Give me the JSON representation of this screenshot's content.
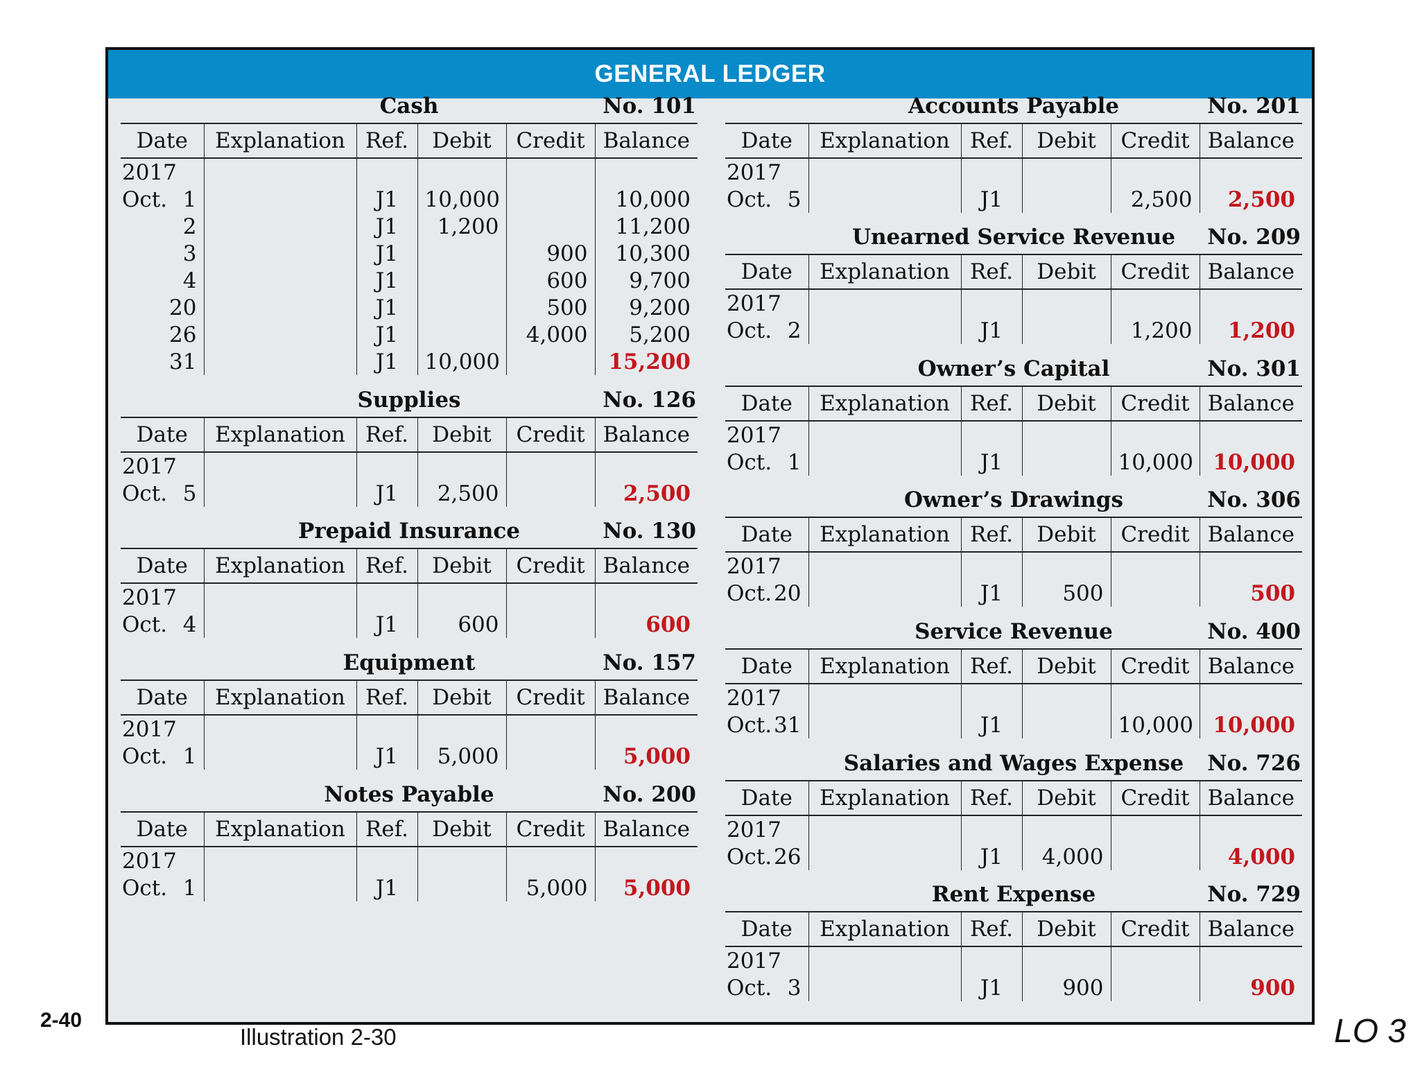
{
  "header": {
    "title": "GENERAL LEDGER"
  },
  "columns": [
    "Date",
    "Explanation",
    "Ref.",
    "Debit",
    "Credit",
    "Balance"
  ],
  "accounts": [
    {
      "side": "left",
      "name": "Cash",
      "number": "No. 101",
      "year": "2017",
      "rows": [
        {
          "month": "Oct.",
          "day": "1",
          "ref": "J1",
          "debit": "10,000",
          "credit": "",
          "balance": "10,000"
        },
        {
          "month": "",
          "day": "2",
          "ref": "J1",
          "debit": "1,200",
          "credit": "",
          "balance": "11,200"
        },
        {
          "month": "",
          "day": "3",
          "ref": "J1",
          "debit": "",
          "credit": "900",
          "balance": "10,300"
        },
        {
          "month": "",
          "day": "4",
          "ref": "J1",
          "debit": "",
          "credit": "600",
          "balance": "9,700"
        },
        {
          "month": "",
          "day": "20",
          "ref": "J1",
          "debit": "",
          "credit": "500",
          "balance": "9,200"
        },
        {
          "month": "",
          "day": "26",
          "ref": "J1",
          "debit": "",
          "credit": "4,000",
          "balance": "5,200"
        },
        {
          "month": "",
          "day": "31",
          "ref": "J1",
          "debit": "10,000",
          "credit": "",
          "balance": "15,200"
        }
      ]
    },
    {
      "side": "left",
      "name": "Supplies",
      "number": "No. 126",
      "year": "2017",
      "rows": [
        {
          "month": "Oct.",
          "day": "5",
          "ref": "J1",
          "debit": "2,500",
          "credit": "",
          "balance": "2,500"
        }
      ]
    },
    {
      "side": "left",
      "name": "Prepaid Insurance",
      "number": "No. 130",
      "year": "2017",
      "rows": [
        {
          "month": "Oct.",
          "day": "4",
          "ref": "J1",
          "debit": "600",
          "credit": "",
          "balance": "600"
        }
      ]
    },
    {
      "side": "left",
      "name": "Equipment",
      "number": "No. 157",
      "year": "2017",
      "rows": [
        {
          "month": "Oct.",
          "day": "1",
          "ref": "J1",
          "debit": "5,000",
          "credit": "",
          "balance": "5,000"
        }
      ]
    },
    {
      "side": "left",
      "name": "Notes Payable",
      "number": "No. 200",
      "year": "2017",
      "rows": [
        {
          "month": "Oct.",
          "day": "1",
          "ref": "J1",
          "debit": "",
          "credit": "5,000",
          "balance": "5,000"
        }
      ]
    },
    {
      "side": "right",
      "name": "Accounts Payable",
      "number": "No. 201",
      "year": "2017",
      "rows": [
        {
          "month": "Oct.",
          "day": "5",
          "ref": "J1",
          "debit": "",
          "credit": "2,500",
          "balance": "2,500"
        }
      ]
    },
    {
      "side": "right",
      "name": "Unearned Service Revenue",
      "number": "No. 209",
      "year": "2017",
      "rows": [
        {
          "month": "Oct.",
          "day": "2",
          "ref": "J1",
          "debit": "",
          "credit": "1,200",
          "balance": "1,200"
        }
      ]
    },
    {
      "side": "right",
      "name": "Owner’s Capital",
      "number": "No. 301",
      "year": "2017",
      "rows": [
        {
          "month": "Oct.",
          "day": "1",
          "ref": "J1",
          "debit": "",
          "credit": "10,000",
          "balance": "10,000"
        }
      ]
    },
    {
      "side": "right",
      "name": "Owner’s Drawings",
      "number": "No. 306",
      "year": "2017",
      "rows": [
        {
          "month": "Oct.",
          "day": "20",
          "ref": "J1",
          "debit": "500",
          "credit": "",
          "balance": "500"
        }
      ]
    },
    {
      "side": "right",
      "name": "Service Revenue",
      "number": "No. 400",
      "year": "2017",
      "rows": [
        {
          "month": "Oct.",
          "day": "31",
          "ref": "J1",
          "debit": "",
          "credit": "10,000",
          "balance": "10,000"
        }
      ]
    },
    {
      "side": "right",
      "name": "Salaries and Wages Expense",
      "number": "No. 726",
      "year": "2017",
      "rows": [
        {
          "month": "Oct.",
          "day": "26",
          "ref": "J1",
          "debit": "4,000",
          "credit": "",
          "balance": "4,000"
        }
      ]
    },
    {
      "side": "right",
      "name": "Rent Expense",
      "number": "No. 729",
      "year": "2017",
      "rows": [
        {
          "month": "Oct.",
          "day": "3",
          "ref": "J1",
          "debit": "900",
          "credit": "",
          "balance": "900"
        }
      ]
    }
  ],
  "footer": {
    "illustration": "Illustration 2-30",
    "page": "2-40",
    "lo": "LO 3"
  },
  "colors": {
    "header": "#0a8bc9",
    "panel": "#e6eaed",
    "final_balance": "#c3171d"
  }
}
